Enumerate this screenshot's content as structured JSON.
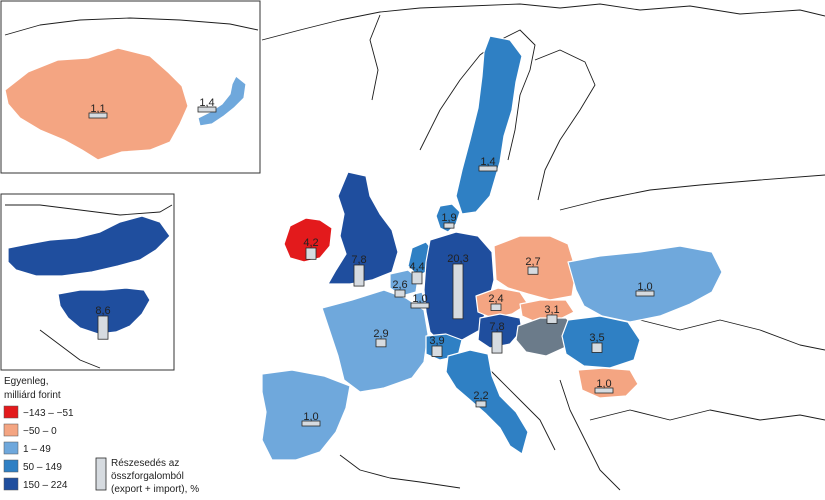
{
  "colors": {
    "class_1": "#e31a1c",
    "class_2": "#f4a582",
    "class_3": "#6fa8dc",
    "class_4": "#2f80c4",
    "class_5": "#1f4e9e",
    "no_data": "#6b7b8a",
    "bar": "#d6dbe0"
  },
  "regions": [
    {
      "id": "china",
      "label": "1,1",
      "share": 1.1,
      "class": 2
    },
    {
      "id": "japan",
      "label": "1,4",
      "share": 1.4,
      "class": 3
    },
    {
      "id": "usa",
      "label": "8,6",
      "share": 8.6,
      "class": 5
    },
    {
      "id": "canada",
      "label": "",
      "share": null,
      "class": 5
    },
    {
      "id": "sweden",
      "label": "1,4",
      "share": 1.4,
      "class": 4
    },
    {
      "id": "denmark",
      "label": "1,9",
      "share": 1.9,
      "class": 4
    },
    {
      "id": "ireland",
      "label": "4,2",
      "share": 4.2,
      "class": 1
    },
    {
      "id": "uk",
      "label": "7,8",
      "share": 7.8,
      "class": 5
    },
    {
      "id": "netherlands",
      "label": "4,4",
      "share": 4.4,
      "class": 4
    },
    {
      "id": "belgium",
      "label": "2,6",
      "share": 2.6,
      "class": 3
    },
    {
      "id": "luxembourg",
      "label": "1,0",
      "share": 1.0,
      "class": 3
    },
    {
      "id": "germany",
      "label": "20,3",
      "share": 20.3,
      "class": 5
    },
    {
      "id": "poland",
      "label": "2,7",
      "share": 2.7,
      "class": 2
    },
    {
      "id": "ukraine",
      "label": "1,0",
      "share": 1.0,
      "class": 3
    },
    {
      "id": "czechia",
      "label": "2,4",
      "share": 2.4,
      "class": 2
    },
    {
      "id": "slovakia",
      "label": "3,1",
      "share": 3.1,
      "class": 2
    },
    {
      "id": "austria",
      "label": "7,8",
      "share": 7.8,
      "class": 5
    },
    {
      "id": "romania",
      "label": "3,5",
      "share": 3.5,
      "class": 4
    },
    {
      "id": "bulgaria",
      "label": "1,0",
      "share": 1.0,
      "class": 2
    },
    {
      "id": "france",
      "label": "2,9",
      "share": 2.9,
      "class": 3
    },
    {
      "id": "switzerland",
      "label": "3,9",
      "share": 3.9,
      "class": 4
    },
    {
      "id": "italy",
      "label": "2,2",
      "share": 2.2,
      "class": 4
    },
    {
      "id": "spain",
      "label": "1,0",
      "share": 1.0,
      "class": 3
    },
    {
      "id": "hungary",
      "label": "",
      "share": null,
      "class": 0
    }
  ],
  "legend": {
    "title_line1": "Egyenleg,",
    "title_line2": "milliárd forint",
    "classes": [
      "−143 – −51",
      "−50 –   0",
      "1 –   49",
      "50 – 149",
      "150 – 224"
    ],
    "share_line1": "Részesedés az",
    "share_line2": "összforgalomból",
    "share_line3": "(export + import), %"
  }
}
